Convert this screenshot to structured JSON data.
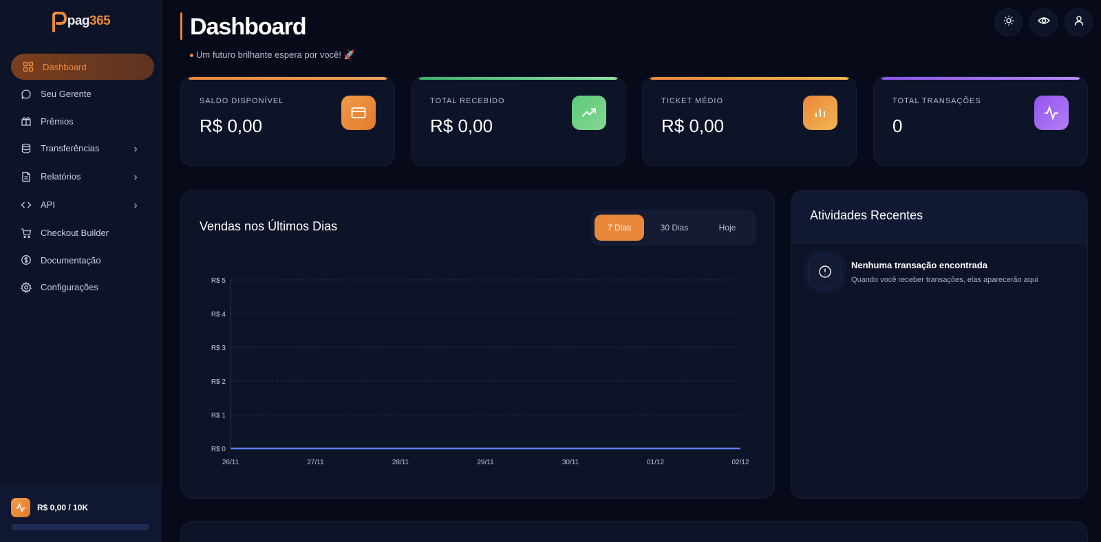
{
  "brand": {
    "logo_text_a": "pag",
    "logo_text_b": "365"
  },
  "sidebar": {
    "items": [
      {
        "label": "Dashboard",
        "icon": "grid-icon",
        "active": true
      },
      {
        "label": "Seu Gerente",
        "icon": "chat-icon"
      },
      {
        "label": "Prêmios",
        "icon": "gift-icon"
      },
      {
        "label": "Transferências",
        "icon": "database-icon",
        "has_submenu": true
      },
      {
        "label": "Relatórios",
        "icon": "document-icon",
        "has_submenu": true
      },
      {
        "label": "API",
        "icon": "code-icon",
        "has_submenu": true
      },
      {
        "label": "Checkout Builder",
        "icon": "cart-icon"
      },
      {
        "label": "Documentação",
        "icon": "dollar-circle-icon"
      },
      {
        "label": "Configurações",
        "icon": "gear-icon"
      }
    ],
    "limit": {
      "text": "R$ 0,00 / 10K",
      "progress": 0
    }
  },
  "header": {
    "title": "Dashboard",
    "subtitle": "Um futuro brilhante espera por você! 🚀",
    "actions": [
      "sun-icon",
      "eye-icon",
      "user-icon"
    ]
  },
  "stats": [
    {
      "label": "SALDO DISPONÍVEL",
      "value": "R$ 0,00",
      "icon": "credit-card-icon",
      "color": "#e9873a"
    },
    {
      "label": "TOTAL RECEBIDO",
      "value": "R$ 0,00",
      "icon": "trending-up-icon",
      "color": "#5fc47a"
    },
    {
      "label": "TICKET MÉDIO",
      "value": "R$ 0,00",
      "icon": "bar-chart-icon",
      "color": "#ef9a3a"
    },
    {
      "label": "TOTAL TRANSAÇÕES",
      "value": "0",
      "icon": "activity-icon",
      "color": "#9a62f0"
    }
  ],
  "sales": {
    "title": "Vendas nos Últimos Dias",
    "tabs": [
      {
        "label": "7 Dias",
        "active": true
      },
      {
        "label": "30 Dias"
      },
      {
        "label": "Hoje"
      }
    ]
  },
  "chart_data": {
    "type": "line",
    "title": "Vendas nos Últimos Dias",
    "x": [
      "26/11",
      "27/11",
      "28/11",
      "29/11",
      "30/11",
      "01/12",
      "02/12"
    ],
    "series": [
      {
        "values": [
          0,
          0,
          0,
          0,
          0,
          0,
          0
        ]
      }
    ],
    "yticks": [
      "R$ 0",
      "R$ 1",
      "R$ 2",
      "R$ 3",
      "R$ 4",
      "R$ 5"
    ],
    "ylim": [
      0,
      5
    ],
    "grid": true,
    "line_color": "#5b7cf0"
  },
  "activities": {
    "title": "Atividades Recentes",
    "empty_title": "Nenhuma transação encontrada",
    "empty_desc": "Quando você receber transações, elas aparecerão aqui"
  }
}
